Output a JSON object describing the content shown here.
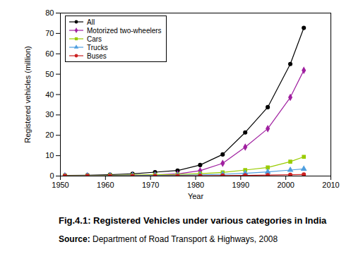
{
  "chart_data": {
    "type": "line",
    "title": "Fig.4.1: Registered Vehicles under various categories in India",
    "subtitle": "Source: Department of Road Transport & Highways, 2008",
    "x_label": "Year",
    "y_label": "Registered vehicles (million)",
    "x": [
      1951,
      1956,
      1961,
      1966,
      1971,
      1976,
      1981,
      1986,
      1991,
      1996,
      2001,
      2004
    ],
    "series": [
      {
        "name": "All",
        "color": "#000000",
        "marker": "circle",
        "values": [
          0.3,
          0.4,
          0.7,
          1.1,
          1.9,
          2.7,
          5.4,
          10.6,
          21.4,
          33.8,
          55.0,
          72.7
        ]
      },
      {
        "name": "Motorized two-wheelers",
        "color": "#a020a0",
        "marker": "diamond",
        "values": [
          0.03,
          0.04,
          0.09,
          0.23,
          0.58,
          1.06,
          2.62,
          6.25,
          14.2,
          23.25,
          38.6,
          51.9
        ]
      },
      {
        "name": "Cars",
        "color": "#99cc00",
        "marker": "square",
        "values": [
          0.16,
          0.2,
          0.31,
          0.46,
          0.68,
          0.78,
          1.16,
          1.78,
          2.95,
          4.2,
          7.06,
          9.45
        ]
      },
      {
        "name": "Trucks",
        "color": "#4f9fdf",
        "marker": "triangle",
        "values": [
          0.08,
          0.12,
          0.17,
          0.26,
          0.34,
          0.35,
          0.55,
          0.86,
          1.36,
          2.03,
          2.95,
          3.49
        ]
      },
      {
        "name": "Buses",
        "color": "#cc2222",
        "marker": "circle",
        "values": [
          0.03,
          0.05,
          0.06,
          0.07,
          0.09,
          0.11,
          0.16,
          0.23,
          0.33,
          0.45,
          0.63,
          0.77
        ]
      }
    ],
    "xlim": [
      1950,
      2010
    ],
    "xticks": [
      1950,
      1960,
      1970,
      1980,
      1990,
      2000,
      2010
    ],
    "ylim": [
      0,
      80
    ],
    "yticks": [
      0,
      10,
      20,
      30,
      40,
      50,
      60,
      70,
      80
    ],
    "grid": false,
    "legend": "top-left"
  }
}
